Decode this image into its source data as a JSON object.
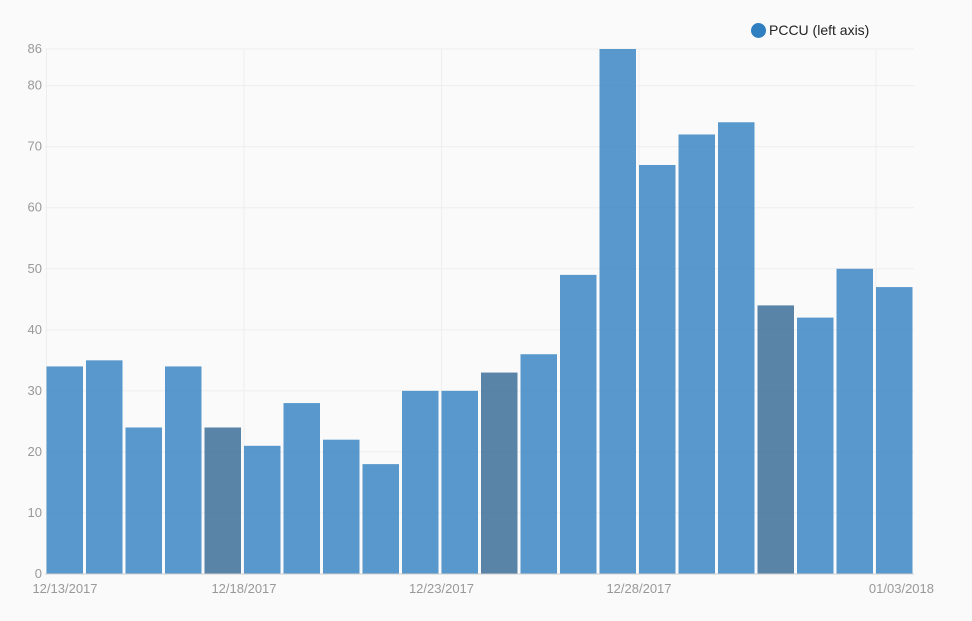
{
  "legend": {
    "label": "PCCU (left axis)",
    "color": "#2f7fc1"
  },
  "chart_data": {
    "type": "bar",
    "title": "",
    "xlabel": "",
    "ylabel": "",
    "ylim": [
      0,
      86
    ],
    "y_ticks": [
      0,
      10,
      20,
      30,
      40,
      50,
      60,
      70,
      80,
      86
    ],
    "x_tick_labels": [
      "12/13/2017",
      "12/18/2017",
      "12/23/2017",
      "12/28/2017",
      "01/03/2018"
    ],
    "x_tick_indices": [
      0,
      5,
      10,
      15,
      21
    ],
    "categories": [
      "12/13/2017",
      "12/14/2017",
      "12/15/2017",
      "12/16/2017",
      "12/17/2017",
      "12/18/2017",
      "12/19/2017",
      "12/20/2017",
      "12/21/2017",
      "12/22/2017",
      "12/23/2017",
      "12/24/2017",
      "12/25/2017",
      "12/26/2017",
      "12/27/2017",
      "12/28/2017",
      "12/29/2017",
      "12/30/2017",
      "12/31/2017",
      "01/01/2018",
      "01/02/2018",
      "01/03/2018"
    ],
    "values": [
      34,
      35,
      24,
      34,
      24,
      21,
      28,
      22,
      18,
      30,
      30,
      33,
      36,
      49,
      86,
      67,
      72,
      74,
      44,
      42,
      50,
      47
    ],
    "series": [
      {
        "name": "PCCU (left axis)"
      }
    ],
    "bar_color": "#2f7fc1",
    "weekend_bar_color": "#3c6e99",
    "darker_indices": [
      4,
      11,
      18
    ],
    "grid": true,
    "legend_position": "top-right"
  }
}
